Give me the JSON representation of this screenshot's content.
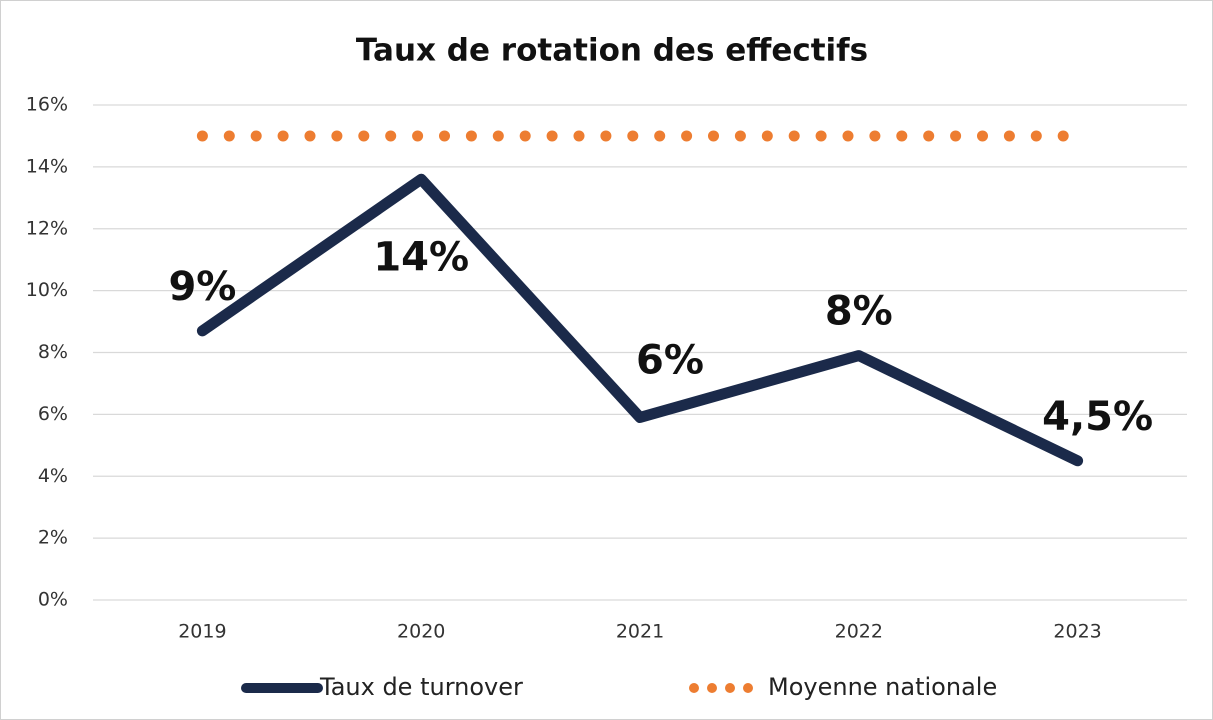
{
  "chart_data": {
    "type": "line",
    "title": "Taux de rotation des effectifs",
    "categories": [
      "2019",
      "2020",
      "2021",
      "2022",
      "2023"
    ],
    "series": [
      {
        "name": "Taux de turnover",
        "color": "#1b2a4a",
        "values": [
          8.7,
          13.6,
          5.9,
          7.9,
          4.5
        ],
        "value_labels": [
          "9%",
          "14%",
          "6%",
          "8%",
          "4,5%"
        ]
      },
      {
        "name": "Moyenne nationale",
        "color": "#ed7d31",
        "style": "dotted",
        "values": [
          15,
          15,
          15,
          15,
          15
        ]
      }
    ],
    "ylim": [
      0,
      16
    ],
    "yticks": [
      {
        "value": 0,
        "label": "0%"
      },
      {
        "value": 2,
        "label": "2%"
      },
      {
        "value": 4,
        "label": "4%"
      },
      {
        "value": 6,
        "label": "6%"
      },
      {
        "value": 8,
        "label": "8%"
      },
      {
        "value": 10,
        "label": "10%"
      },
      {
        "value": 12,
        "label": "12%"
      },
      {
        "value": 14,
        "label": "14%"
      },
      {
        "value": 16,
        "label": "16%"
      }
    ],
    "grid": true,
    "legend": "bottom"
  }
}
